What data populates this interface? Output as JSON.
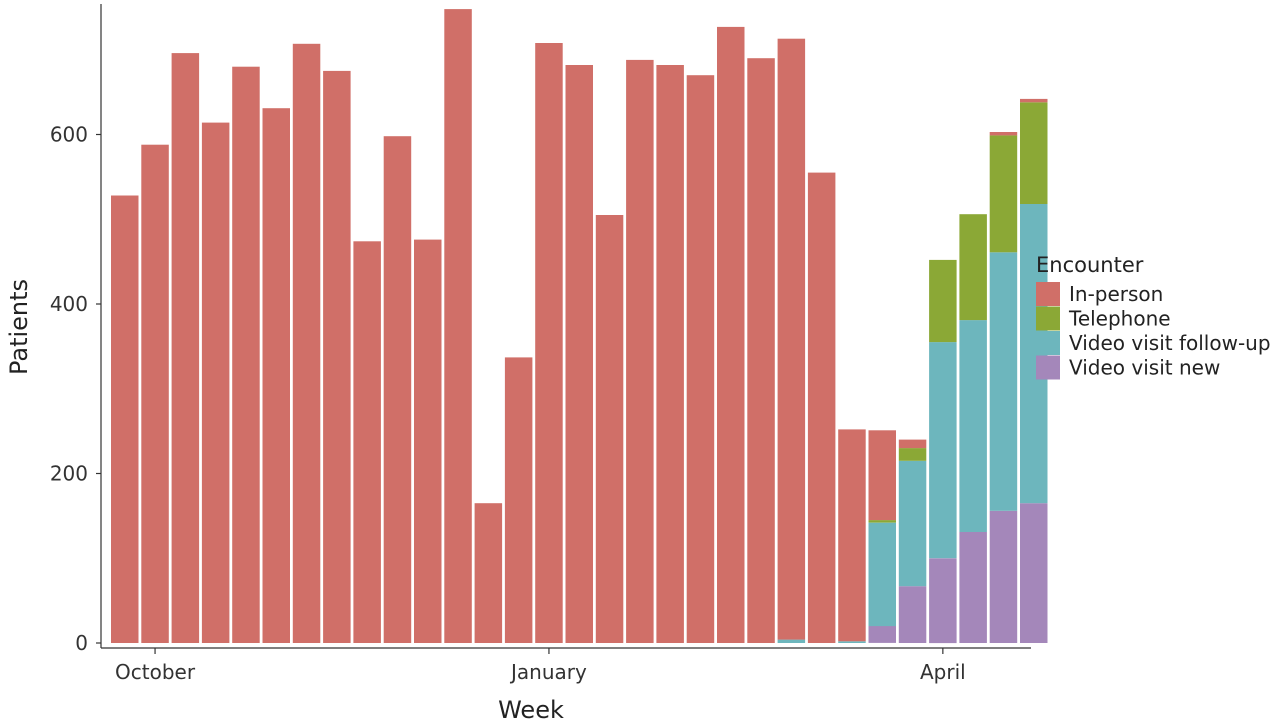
{
  "chart_data": {
    "type": "bar",
    "stacked": true,
    "xlabel": "Week",
    "ylabel": "Patients",
    "ylim": [
      0,
      760
    ],
    "yticks": [
      0,
      200,
      400,
      600
    ],
    "xticks": [
      {
        "label": "October",
        "week_index": 1
      },
      {
        "label": "January",
        "week_index": 14
      },
      {
        "label": "April",
        "week_index": 27
      }
    ],
    "grid": false,
    "legend": {
      "title": "Encounter",
      "position": "right"
    },
    "num_weeks": 31,
    "series": [
      {
        "name": "Video visit new",
        "color": "#a487ba",
        "values": [
          0,
          0,
          0,
          0,
          0,
          0,
          0,
          0,
          0,
          0,
          0,
          0,
          0,
          0,
          0,
          0,
          0,
          0,
          0,
          0,
          0,
          0,
          0,
          0,
          0,
          20,
          67,
          100,
          131,
          156,
          165
        ]
      },
      {
        "name": "Video visit follow-up",
        "color": "#6db6bd",
        "values": [
          0,
          0,
          0,
          0,
          0,
          0,
          0,
          0,
          0,
          0,
          0,
          0,
          0,
          0,
          0,
          0,
          0,
          0,
          0,
          0,
          0,
          0,
          4,
          0,
          2,
          122,
          148,
          255,
          250,
          305,
          353
        ]
      },
      {
        "name": "Telephone",
        "color": "#8ba836",
        "values": [
          0,
          0,
          0,
          0,
          0,
          0,
          0,
          0,
          0,
          0,
          0,
          0,
          0,
          0,
          0,
          0,
          0,
          0,
          0,
          0,
          0,
          0,
          0,
          0,
          0,
          3,
          15,
          97,
          125,
          138,
          120
        ]
      },
      {
        "name": "In-person",
        "color": "#d06f68",
        "values": [
          528,
          588,
          696,
          614,
          680,
          631,
          707,
          675,
          474,
          598,
          476,
          748,
          165,
          337,
          708,
          682,
          505,
          688,
          682,
          670,
          727,
          690,
          709,
          555,
          250,
          106,
          10,
          0,
          0,
          4,
          4
        ]
      }
    ]
  }
}
